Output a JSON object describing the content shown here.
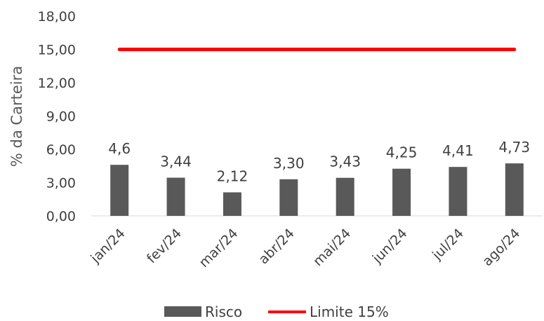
{
  "chart_data": {
    "type": "bar",
    "title": "",
    "xlabel": "",
    "ylabel": "% da Carteira",
    "ylim": [
      0,
      18
    ],
    "yticks": [
      0,
      3,
      6,
      9,
      12,
      15,
      18
    ],
    "ytick_labels": [
      "0,00",
      "3,00",
      "6,00",
      "9,00",
      "12,00",
      "15,00",
      "18,00"
    ],
    "categories": [
      "jan/24",
      "fev/24",
      "mar/24",
      "abr/24",
      "mai/24",
      "jun/24",
      "jul/24",
      "ago/24"
    ],
    "series": [
      {
        "name": "Risco",
        "type": "bar",
        "color": "#595959",
        "values": [
          4.6,
          3.44,
          2.12,
          3.3,
          3.43,
          4.25,
          4.41,
          4.73
        ],
        "data_labels": [
          "4,6",
          "3,44",
          "2,12",
          "3,30",
          "3,43",
          "4,25",
          "4,41",
          "4,73"
        ]
      },
      {
        "name": "Limite 15%",
        "type": "line",
        "color": "#ff0000",
        "values": [
          15,
          15,
          15,
          15,
          15,
          15,
          15,
          15
        ]
      }
    ],
    "legend_position": "bottom",
    "grid": false
  }
}
